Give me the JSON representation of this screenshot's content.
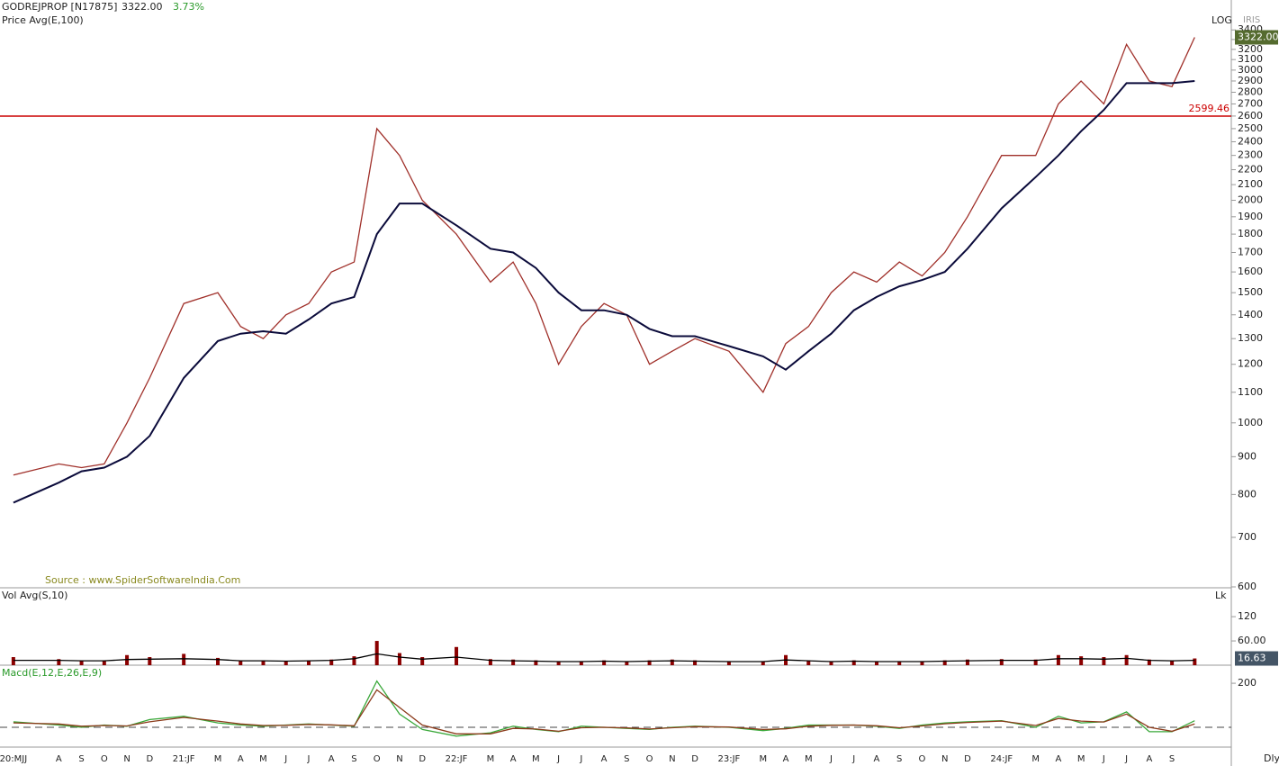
{
  "header": {
    "symbol": "GODREJPROP [N17875]",
    "price": "3322.00",
    "change": "3.73%",
    "brand": "IRIS",
    "period": "Dly"
  },
  "chart_data": [
    {
      "type": "line",
      "subtitle": "Price  Avg(E,100)",
      "scale_label": "LOG",
      "log": true,
      "source": "Source : www.SpiderSoftwareIndia.Com",
      "ylim": [
        600,
        3680
      ],
      "yticks": [
        600,
        700,
        800,
        900,
        1000,
        1100,
        1200,
        1300,
        1400,
        1500,
        1600,
        1700,
        1800,
        1900,
        2000,
        2100,
        2200,
        2300,
        2400,
        2500,
        2600,
        2700,
        2800,
        2900,
        3000,
        3100,
        3200,
        3300,
        3400
      ],
      "hline": 2599.46,
      "hline_color": "#cc0000",
      "last_label": "3322.00",
      "series": [
        {
          "name": "Price",
          "color": "#a0302a",
          "values": [
            850,
            880,
            870,
            880,
            1000,
            1150,
            1450,
            1500,
            1350,
            1300,
            1400,
            1450,
            1600,
            1650,
            2500,
            2300,
            2000,
            1800,
            1550,
            1650,
            1450,
            1200,
            1350,
            1450,
            1400,
            1200,
            1250,
            1300,
            1250,
            1100,
            1280,
            1350,
            1500,
            1600,
            1550,
            1650,
            1580,
            1700,
            1900,
            2300,
            2300,
            2700,
            2900,
            2700,
            3250,
            2900,
            2850,
            3322
          ]
        },
        {
          "name": "Avg(E,100)",
          "color": "#0b0b3b",
          "values": [
            780,
            830,
            860,
            870,
            900,
            960,
            1150,
            1290,
            1320,
            1330,
            1320,
            1380,
            1450,
            1480,
            1800,
            1980,
            1980,
            1850,
            1720,
            1700,
            1620,
            1500,
            1420,
            1420,
            1400,
            1340,
            1310,
            1310,
            1270,
            1230,
            1180,
            1250,
            1320,
            1420,
            1480,
            1530,
            1560,
            1600,
            1720,
            1950,
            2150,
            2300,
            2480,
            2650,
            2880,
            2880,
            2880,
            2900
          ]
        }
      ]
    },
    {
      "type": "bar",
      "subtitle": "Vol  Avg(S,10)",
      "unit_label": "Lk",
      "ylim": [
        0,
        187
      ],
      "yticks": [
        {
          "value": 60,
          "label": "60.00"
        },
        120
      ],
      "last_label": "16.63",
      "series": [
        {
          "name": "Vol",
          "color": "#8b0000",
          "values": [
            20,
            15,
            12,
            12,
            25,
            20,
            28,
            18,
            10,
            12,
            10,
            12,
            14,
            22,
            60,
            30,
            20,
            45,
            15,
            14,
            12,
            10,
            10,
            12,
            10,
            12,
            14,
            12,
            10,
            10,
            25,
            12,
            10,
            12,
            10,
            10,
            10,
            12,
            14,
            15,
            14,
            25,
            22,
            20,
            25,
            14,
            12,
            16.63
          ]
        },
        {
          "name": "Avg(S,10)",
          "color": "#000000",
          "values": [
            12,
            12,
            11,
            11,
            14,
            15,
            16,
            14,
            11,
            11,
            10,
            11,
            12,
            16,
            28,
            20,
            15,
            20,
            12,
            11,
            10,
            9,
            9,
            10,
            9,
            10,
            11,
            10,
            9,
            9,
            13,
            11,
            9,
            10,
            9,
            9,
            9,
            10,
            11,
            12,
            12,
            16,
            16,
            15,
            17,
            12,
            11,
            12
          ]
        }
      ]
    },
    {
      "type": "line",
      "subtitle": "Macd(E,12,E,26,E,9)",
      "ylim": [
        -90,
        278
      ],
      "yticks": [
        200
      ],
      "categories": [
        "20:MJJ",
        "A",
        "S",
        "O",
        "N",
        "D",
        "21:JF",
        "M",
        "A",
        "M",
        "J",
        "J",
        "A",
        "S",
        "O",
        "N",
        "D",
        "22:JF",
        "M",
        "A",
        "M",
        "J",
        "J",
        "A",
        "S",
        "O",
        "N",
        "D",
        "23:JF",
        "M",
        "A",
        "M",
        "J",
        "J",
        "A",
        "S",
        "O",
        "N",
        "D",
        "24:JF",
        "M",
        "A",
        "M",
        "J",
        "J",
        "A",
        "S",
        null
      ],
      "series": [
        {
          "name": "Macd",
          "color": "#3aa83a",
          "values": [
            25,
            10,
            0,
            10,
            5,
            35,
            50,
            20,
            10,
            5,
            10,
            15,
            10,
            5,
            210,
            60,
            -10,
            -40,
            -25,
            5,
            -10,
            -20,
            5,
            0,
            -5,
            -10,
            0,
            5,
            0,
            -15,
            -5,
            10,
            10,
            10,
            5,
            -5,
            10,
            20,
            25,
            30,
            0,
            50,
            20,
            25,
            70,
            -20,
            -20,
            30
          ]
        },
        {
          "name": "Signal",
          "color": "#8b3a1a",
          "values": [
            20,
            15,
            5,
            8,
            6,
            25,
            45,
            28,
            15,
            8,
            9,
            13,
            11,
            7,
            170,
            90,
            10,
            -30,
            -30,
            -5,
            -8,
            -18,
            -2,
            0,
            -3,
            -8,
            -2,
            3,
            1,
            -10,
            -7,
            5,
            9,
            10,
            7,
            -2,
            6,
            16,
            22,
            28,
            8,
            40,
            28,
            24,
            60,
            0,
            -18,
            15
          ]
        }
      ]
    }
  ]
}
